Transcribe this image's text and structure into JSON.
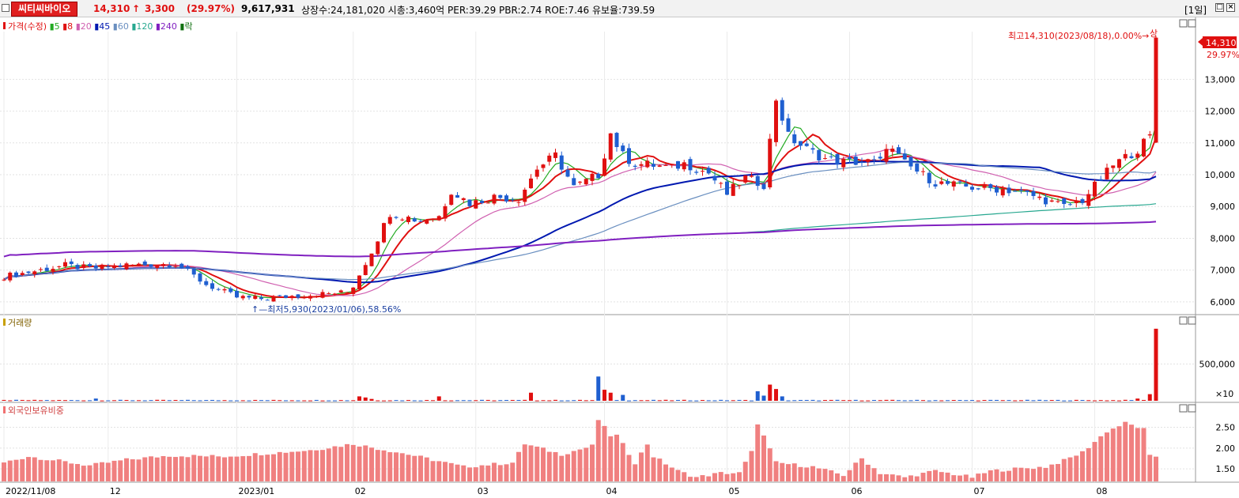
{
  "header": {
    "stock_name": "씨티씨바이오",
    "price": "14,310",
    "arrow": "↑",
    "change": "3,300",
    "change_pct": "(29.97%)",
    "volume": "9,617,931",
    "info": "상장수:24,181,020 시총:3,460억 PER:39.29 PBR:2.74 ROE:7.46 유보율:739.59",
    "period": "[1일]"
  },
  "legend": {
    "price_label": "가격(수정)",
    "ma": [
      {
        "label": "5",
        "color": "#22aa22"
      },
      {
        "label": "8",
        "color": "#e01010"
      },
      {
        "label": "20",
        "color": "#d060b0"
      },
      {
        "label": "45",
        "color": "#0018b0"
      },
      {
        "label": "60",
        "color": "#6a8fc0"
      },
      {
        "label": "120",
        "color": "#28a890"
      },
      {
        "label": "240",
        "color": "#8020c0"
      }
    ],
    "fall_label": "락"
  },
  "annotations": {
    "high": "최고14,310(2023/08/18),0.00%→",
    "high_tag": "상",
    "low": "↑—최저5,930(2023/01/06),58.56%",
    "last_price": "14,310",
    "last_pct": "29.97%"
  },
  "volume_panel": {
    "title": "거래량",
    "multiplier": "×10"
  },
  "foreign_panel": {
    "title": "외국인보유비중"
  },
  "chart_data": [
    {
      "type": "candlestick",
      "title": "가격(수정)",
      "y_ticks": [
        6000,
        7000,
        8000,
        9000,
        10000,
        11000,
        12000,
        13000
      ],
      "y_tick_labels": [
        "6,000",
        "7,000",
        "8,000",
        "9,000",
        "10,000",
        "11,000",
        "12,000",
        "13,000"
      ],
      "ylim": [
        5650,
        14500
      ],
      "x_labels": [
        "2022/11/08",
        "12",
        "2023/01",
        "02",
        "03",
        "04",
        "05",
        "06",
        "07",
        "08"
      ],
      "x_label_index": [
        0,
        17,
        38,
        57,
        77,
        98,
        118,
        138,
        158,
        178
      ],
      "anchors": [
        [
          0,
          6800
        ],
        [
          6,
          7000
        ],
        [
          10,
          7150
        ],
        [
          14,
          7050
        ],
        [
          20,
          7150
        ],
        [
          28,
          7200
        ],
        [
          30,
          6950
        ],
        [
          33,
          6550
        ],
        [
          38,
          6150
        ],
        [
          42,
          6100
        ],
        [
          48,
          6200
        ],
        [
          56,
          6300
        ],
        [
          57,
          6500
        ],
        [
          60,
          7600
        ],
        [
          63,
          8800
        ],
        [
          68,
          8550
        ],
        [
          71,
          8700
        ],
        [
          73,
          9500
        ],
        [
          76,
          9100
        ],
        [
          80,
          9300
        ],
        [
          84,
          9250
        ],
        [
          87,
          10200
        ],
        [
          90,
          10600
        ],
        [
          93,
          9600
        ],
        [
          97,
          10000
        ],
        [
          99,
          11300
        ],
        [
          101,
          10600
        ],
        [
          103,
          10350
        ],
        [
          106,
          10300
        ],
        [
          109,
          10200
        ],
        [
          111,
          10350
        ],
        [
          115,
          10050
        ],
        [
          118,
          9400
        ],
        [
          121,
          9900
        ],
        [
          124,
          9700
        ],
        [
          126,
          12400
        ],
        [
          128,
          11200
        ],
        [
          131,
          10800
        ],
        [
          134,
          10500
        ],
        [
          137,
          10400
        ],
        [
          140,
          10400
        ],
        [
          143,
          10400
        ],
        [
          144,
          10950
        ],
        [
          147,
          10350
        ],
        [
          152,
          9750
        ],
        [
          158,
          9600
        ],
        [
          163,
          9550
        ],
        [
          166,
          9450
        ],
        [
          170,
          9200
        ],
        [
          173,
          9000
        ],
        [
          176,
          9200
        ],
        [
          181,
          10300
        ],
        [
          185,
          10800
        ],
        [
          187,
          11200
        ],
        [
          188,
          14310
        ]
      ],
      "series_ma": [
        {
          "name": "5",
          "period": 5
        },
        {
          "name": "8",
          "period": 8
        },
        {
          "name": "20",
          "period": 20
        },
        {
          "name": "45",
          "period": 45
        },
        {
          "name": "60",
          "period": 60
        },
        {
          "name": "120",
          "period": 120
        },
        {
          "name": "240",
          "period": 240
        }
      ],
      "high": {
        "value": 14310,
        "date": "2023/08/18"
      },
      "low": {
        "value": 5930,
        "date": "2023/01/06"
      }
    },
    {
      "type": "bar",
      "title": "거래량",
      "y_ticks": [
        500000
      ],
      "y_tick_labels": [
        "500,000"
      ],
      "ylim": [
        0,
        1000000
      ],
      "spikes": [
        [
          15,
          30000
        ],
        [
          58,
          60000
        ],
        [
          59,
          45000
        ],
        [
          60,
          25000
        ],
        [
          71,
          60000
        ],
        [
          86,
          110000
        ],
        [
          97,
          330000
        ],
        [
          98,
          150000
        ],
        [
          99,
          110000
        ],
        [
          101,
          80000
        ],
        [
          123,
          130000
        ],
        [
          124,
          70000
        ],
        [
          125,
          220000
        ],
        [
          126,
          160000
        ],
        [
          127,
          60000
        ],
        [
          188,
          980000
        ],
        [
          187,
          90000
        ],
        [
          185,
          30000
        ]
      ],
      "last_value": 9617931
    },
    {
      "type": "bar",
      "title": "외국인보유비중",
      "y_ticks": [
        1.5,
        2.0,
        2.5
      ],
      "y_tick_labels": [
        "1.50",
        "2.00",
        "2.50"
      ],
      "ylim": [
        1.2,
        2.85
      ],
      "anchors": [
        [
          0,
          1.65
        ],
        [
          4,
          1.8
        ],
        [
          14,
          1.58
        ],
        [
          20,
          1.72
        ],
        [
          27,
          1.82
        ],
        [
          36,
          1.8
        ],
        [
          50,
          1.95
        ],
        [
          57,
          2.1
        ],
        [
          66,
          1.85
        ],
        [
          75,
          1.55
        ],
        [
          83,
          1.65
        ],
        [
          85,
          2.1
        ],
        [
          91,
          1.85
        ],
        [
          96,
          2.05
        ],
        [
          97,
          2.68
        ],
        [
          99,
          2.3
        ],
        [
          100,
          2.3
        ],
        [
          103,
          1.65
        ],
        [
          105,
          2.1
        ],
        [
          106,
          1.8
        ],
        [
          110,
          1.45
        ],
        [
          113,
          1.3
        ],
        [
          117,
          1.4
        ],
        [
          120,
          1.4
        ],
        [
          122,
          1.9
        ],
        [
          123,
          2.6
        ],
        [
          126,
          1.65
        ],
        [
          132,
          1.55
        ],
        [
          137,
          1.35
        ],
        [
          140,
          1.75
        ],
        [
          143,
          1.4
        ],
        [
          147,
          1.3
        ],
        [
          152,
          1.45
        ],
        [
          158,
          1.3
        ],
        [
          161,
          1.45
        ],
        [
          165,
          1.5
        ],
        [
          170,
          1.55
        ],
        [
          173,
          1.7
        ],
        [
          176,
          1.9
        ],
        [
          180,
          2.4
        ],
        [
          183,
          2.6
        ],
        [
          186,
          2.45
        ],
        [
          187,
          1.8
        ],
        [
          188,
          1.8
        ]
      ]
    }
  ]
}
